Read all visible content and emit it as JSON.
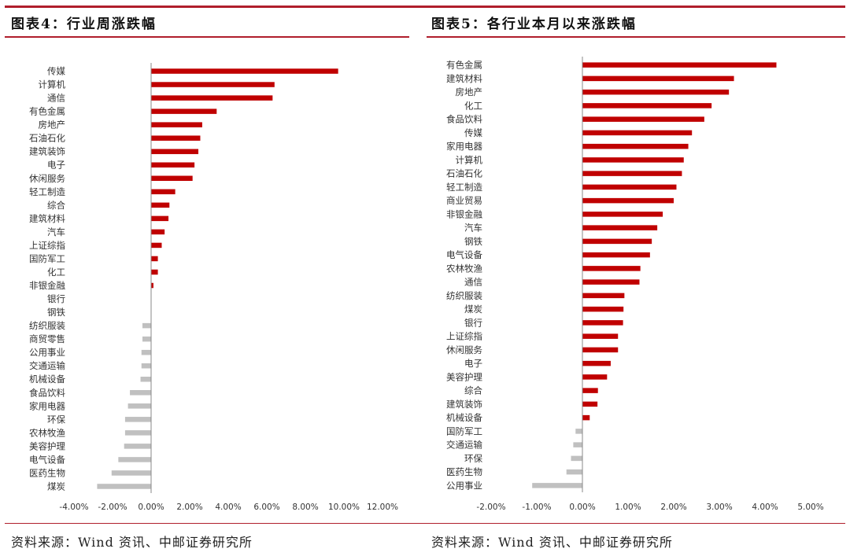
{
  "colors": {
    "accent": "#b01e2c",
    "positive": "#c00000",
    "negative": "#c0c0c0",
    "axis": "#888888"
  },
  "panels": [
    {
      "title": "图表4：行业周涨跌幅",
      "source": "资料来源：Wind 资讯、中邮证券研究所"
    },
    {
      "title": "图表5：各行业本月以来涨跌幅",
      "source": "资料来源：Wind 资讯、中邮证券研究所"
    }
  ],
  "chart_data": [
    {
      "type": "bar",
      "orientation": "horizontal",
      "title": "图表4：行业周涨跌幅",
      "categories": [
        "传媒",
        "计算机",
        "通信",
        "有色金属",
        "房地产",
        "石油石化",
        "建筑装饰",
        "电子",
        "休闲服务",
        "轻工制造",
        "综合",
        "建筑材料",
        "汽车",
        "上证综指",
        "国防军工",
        "化工",
        "非银金融",
        "银行",
        "钢铁",
        "纺织服装",
        "商贸零售",
        "公用事业",
        "交通运输",
        "机械设备",
        "食品饮料",
        "家用电器",
        "环保",
        "农林牧渔",
        "美容护理",
        "电气设备",
        "医药生物",
        "煤炭"
      ],
      "values": [
        9.7,
        6.4,
        6.3,
        3.4,
        2.65,
        2.55,
        2.45,
        2.25,
        2.15,
        1.25,
        0.95,
        0.9,
        0.7,
        0.55,
        0.35,
        0.35,
        0.12,
        0.0,
        0.0,
        -0.45,
        -0.45,
        -0.5,
        -0.5,
        -0.55,
        -1.1,
        -1.2,
        -1.35,
        -1.35,
        -1.4,
        -1.7,
        -2.05,
        -2.8
      ],
      "xlim": [
        -4,
        12
      ],
      "xticks": [
        "-4.00%",
        "-2.00%",
        "0.00%",
        "2.00%",
        "4.00%",
        "6.00%",
        "8.00%",
        "10.00%",
        "12.00%"
      ],
      "grid": false
    },
    {
      "type": "bar",
      "orientation": "horizontal",
      "title": "图表5：各行业本月以来涨跌幅",
      "categories": [
        "有色金属",
        "建筑材料",
        "房地产",
        "化工",
        "食品饮料",
        "传媒",
        "家用电器",
        "计算机",
        "石油石化",
        "轻工制造",
        "商业贸易",
        "非银金融",
        "汽车",
        "钢铁",
        "电气设备",
        "农林牧渔",
        "通信",
        "纺织服装",
        "煤炭",
        "银行",
        "上证综指",
        "休闲服务",
        "电子",
        "美容护理",
        "综合",
        "建筑装饰",
        "机械设备",
        "国防军工",
        "交通运输",
        "环保",
        "医药生物",
        "公用事业"
      ],
      "values": [
        4.25,
        3.32,
        3.21,
        2.83,
        2.67,
        2.4,
        2.32,
        2.22,
        2.18,
        2.06,
        2.0,
        1.76,
        1.64,
        1.52,
        1.48,
        1.27,
        1.25,
        0.92,
        0.9,
        0.89,
        0.78,
        0.78,
        0.62,
        0.54,
        0.34,
        0.33,
        0.16,
        -0.15,
        -0.2,
        -0.25,
        -0.35,
        -1.1
      ],
      "xlim": [
        -2,
        5
      ],
      "xticks": [
        "-2.00%",
        "-1.00%",
        "0.00%",
        "1.00%",
        "2.00%",
        "3.00%",
        "4.00%",
        "5.00%"
      ],
      "grid": false
    }
  ]
}
